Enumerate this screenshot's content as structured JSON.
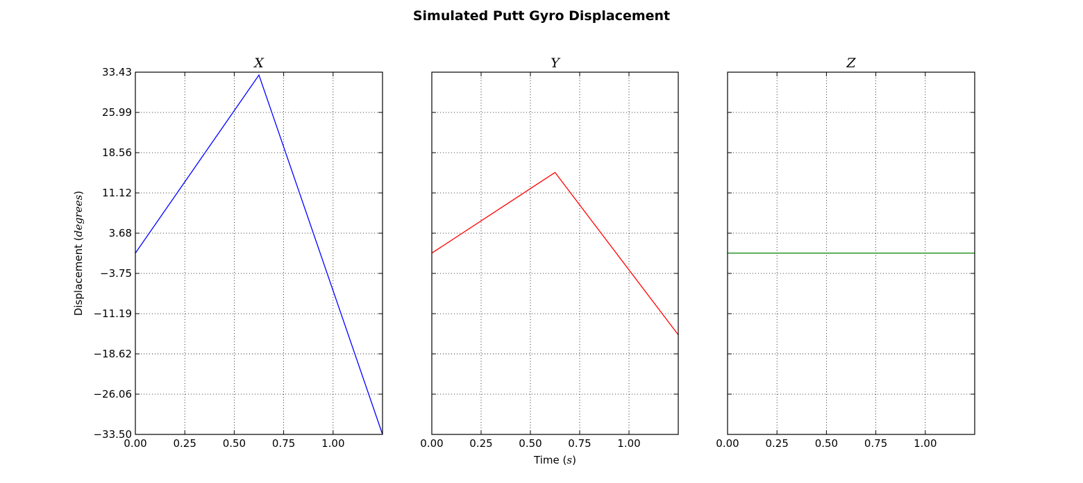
{
  "figure": {
    "title": "Simulated Putt Gyro Displacement"
  },
  "chart_data": [
    {
      "type": "line",
      "title": "X",
      "xlabel": "",
      "ylabel": "Displacement (degrees)",
      "ylabel_prefix": "Displacement (",
      "ylabel_math": "degrees",
      "ylabel_suffix": ")",
      "xlim": [
        0,
        1.25
      ],
      "ylim": [
        -33.5,
        33.43
      ],
      "xticks": [
        0,
        0.25,
        0.5,
        0.75,
        1.0
      ],
      "xtick_labels": [
        "0.00",
        "0.25",
        "0.50",
        "0.75",
        "1.00"
      ],
      "yticks": [
        -33.5,
        -26.06,
        -18.62,
        -11.19,
        -3.75,
        3.68,
        11.12,
        18.56,
        25.99,
        33.43
      ],
      "ytick_labels": [
        "−33.50",
        "−26.06",
        "−18.62",
        "−11.19",
        "−3.75",
        "3.68",
        "11.12",
        "18.56",
        "25.99",
        "33.43"
      ],
      "show_yticklabels": true,
      "grid": true,
      "series": [
        {
          "color": "#0000ff",
          "x": [
            0,
            0.625,
            1.25
          ],
          "y": [
            0,
            32.9,
            -33.5
          ]
        }
      ]
    },
    {
      "type": "line",
      "title": "Y",
      "xlabel": "Time (s)",
      "xlabel_prefix": "Time (",
      "xlabel_math": "s",
      "xlabel_suffix": ")",
      "ylabel": "",
      "xlim": [
        0,
        1.25
      ],
      "ylim": [
        -33.5,
        33.43
      ],
      "xticks": [
        0,
        0.25,
        0.5,
        0.75,
        1.0
      ],
      "xtick_labels": [
        "0.00",
        "0.25",
        "0.50",
        "0.75",
        "1.00"
      ],
      "yticks": [
        -33.5,
        -26.06,
        -18.62,
        -11.19,
        -3.75,
        3.68,
        11.12,
        18.56,
        25.99,
        33.43
      ],
      "show_yticklabels": false,
      "grid": true,
      "series": [
        {
          "color": "#ff0000",
          "x": [
            0,
            0.625,
            1.25
          ],
          "y": [
            0,
            14.9,
            -15.1
          ]
        }
      ]
    },
    {
      "type": "line",
      "title": "Z",
      "xlabel": "",
      "ylabel": "",
      "xlim": [
        0,
        1.25
      ],
      "ylim": [
        -33.5,
        33.43
      ],
      "xticks": [
        0,
        0.25,
        0.5,
        0.75,
        1.0
      ],
      "xtick_labels": [
        "0.00",
        "0.25",
        "0.50",
        "0.75",
        "1.00"
      ],
      "yticks": [
        -33.5,
        -26.06,
        -18.62,
        -11.19,
        -3.75,
        3.68,
        11.12,
        18.56,
        25.99,
        33.43
      ],
      "show_yticklabels": false,
      "grid": true,
      "series": [
        {
          "color": "#008000",
          "x": [
            0,
            1.25
          ],
          "y": [
            0,
            0
          ]
        }
      ]
    }
  ]
}
